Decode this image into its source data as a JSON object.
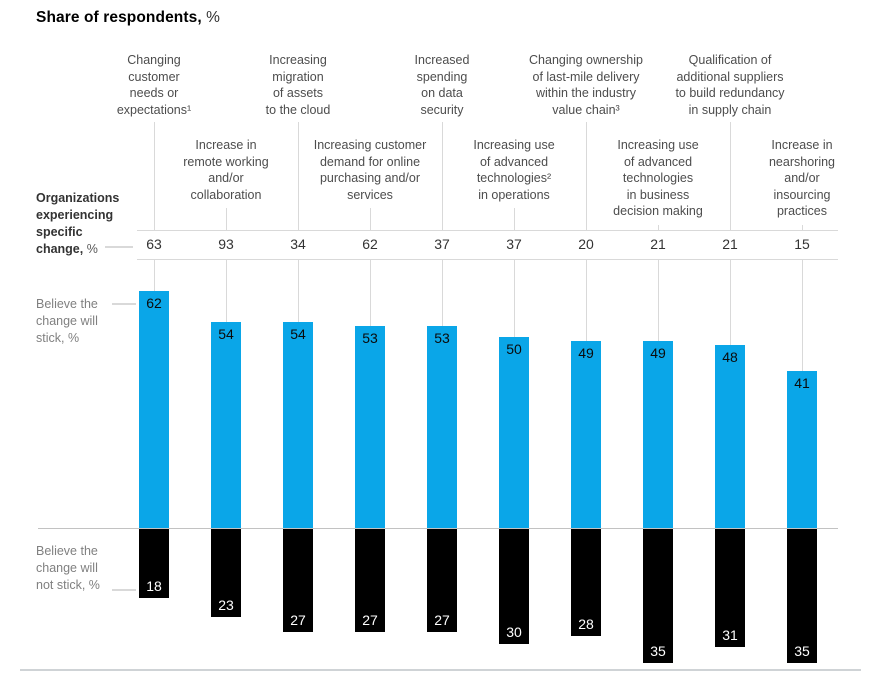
{
  "title": {
    "bold": "Share of respondents,",
    "suffix": " %"
  },
  "left_labels": {
    "organizations": {
      "bold": "Organizations\nexperiencing\nspecific\nchange,",
      "suffix": " %"
    },
    "stick": "Believe the\nchange will\nstick, %",
    "not_stick": "Believe the\nchange will\nnot stick, %"
  },
  "colors": {
    "stick_bar": "#0aa6e8",
    "not_stick_bar": "#000000",
    "leader_line": "#d9d9d9",
    "category_text": "#4d4d4d",
    "muted_text": "#808080"
  },
  "chart_data": {
    "type": "bar",
    "title": "Share of respondents, %",
    "orientation": "diverging-vertical",
    "grid": false,
    "legend_position": "left-inline",
    "categories": [
      {
        "lines": "Changing\ncustomer\nneeds or\nexpectations¹",
        "row": "upper"
      },
      {
        "lines": "Increase in\nremote working\nand/or\ncollaboration",
        "row": "lower"
      },
      {
        "lines": "Increasing\nmigration\nof assets\nto the cloud",
        "row": "upper"
      },
      {
        "lines": "Increasing customer\ndemand for online\npurchasing and/or\nservices",
        "row": "lower"
      },
      {
        "lines": "Increased\nspending\non data\nsecurity",
        "row": "upper"
      },
      {
        "lines": "Increasing use\nof advanced\ntechnologies²\nin operations",
        "row": "lower"
      },
      {
        "lines": "Changing ownership\nof last-mile delivery\nwithin the industry\nvalue chain³",
        "row": "upper"
      },
      {
        "lines": "Increasing use\nof advanced\ntechnologies\nin business\ndecision making",
        "row": "lower"
      },
      {
        "lines": "Qualification of\nadditional suppliers\nto build redundancy\nin supply chain",
        "row": "upper"
      },
      {
        "lines": "Increase in\nnearshoring\nand/or\ninsourcing\npractices",
        "row": "lower"
      }
    ],
    "series": [
      {
        "name": "Organizations experiencing specific change, %",
        "values": [
          63,
          93,
          34,
          62,
          37,
          37,
          20,
          21,
          21,
          15
        ]
      },
      {
        "name": "Believe the change will stick, %",
        "color": "#0aa6e8",
        "direction": "up",
        "values": [
          62,
          54,
          54,
          53,
          53,
          50,
          49,
          49,
          48,
          41
        ]
      },
      {
        "name": "Believe the change will not stick, %",
        "color": "#000000",
        "direction": "down",
        "values": [
          18,
          23,
          27,
          27,
          27,
          30,
          28,
          35,
          31,
          35
        ]
      }
    ],
    "value_axis": {
      "unit": "%",
      "baseline": 0
    }
  }
}
